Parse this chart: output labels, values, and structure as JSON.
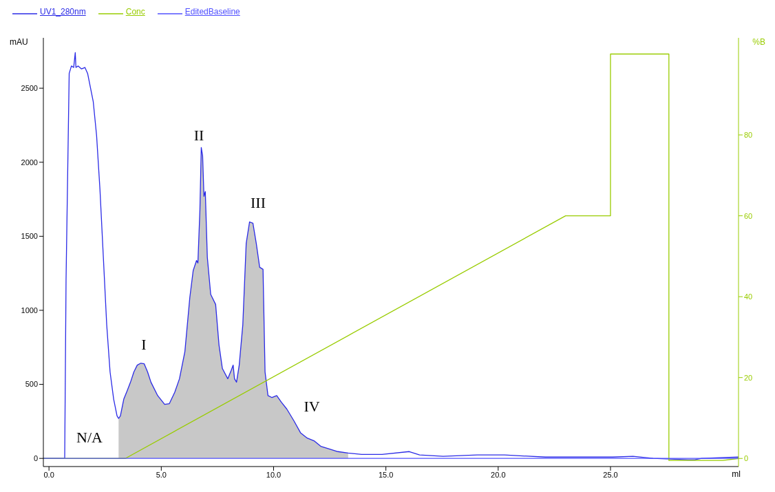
{
  "chart_data": {
    "type": "line",
    "xlabel": "ml",
    "ylabel": "mAU",
    "y2label": "%B",
    "legend": "top left",
    "grid": false,
    "marker": "none",
    "xlim": [
      -0.25,
      30.7
    ],
    "xticks": [
      {
        "value": 0,
        "label": "0.0"
      },
      {
        "value": 5,
        "label": "5.0"
      },
      {
        "value": 10,
        "label": "10.0"
      },
      {
        "value": 15,
        "label": "15.0"
      },
      {
        "value": 20,
        "label": "20.0"
      },
      {
        "value": 25,
        "label": "25.0"
      }
    ],
    "ylim": [
      -55,
      2840
    ],
    "yticks": [
      0,
      500,
      1000,
      1500,
      2000,
      2500
    ],
    "y2lim": [
      -2,
      104
    ],
    "y2ticks": [
      0,
      20,
      40,
      60,
      80
    ],
    "series": [
      {
        "type": "area",
        "color": "#c8c8c8",
        "x": [
          3.1,
          3.18,
          3.33,
          3.48,
          3.63,
          3.78,
          3.93,
          4.09,
          4.24,
          4.39,
          4.54,
          4.84,
          5.15,
          5.36,
          5.6,
          5.81,
          6.05,
          6.27,
          6.42,
          6.57,
          6.63,
          6.72,
          6.78,
          6.84,
          6.9,
          6.96,
          7.05,
          7.2,
          7.42,
          7.57,
          7.72,
          7.96,
          8.11,
          8.2,
          8.26,
          8.35,
          8.47,
          8.63,
          8.78,
          8.93,
          9.08,
          9.23,
          9.38,
          9.53,
          9.62,
          9.75,
          9.93,
          10.14,
          10.35,
          10.59,
          10.9,
          11.2,
          11.5,
          11.8,
          12.1,
          12.4,
          12.86,
          13.32
        ],
        "values": [
          270,
          287,
          400,
          456,
          515,
          584,
          630,
          643,
          639,
          584,
          515,
          424,
          365,
          370,
          447,
          538,
          720,
          1086,
          1268,
          1337,
          1320,
          1679,
          2099,
          2044,
          1770,
          1802,
          1359,
          1108,
          1040,
          766,
          607,
          538,
          593,
          630,
          538,
          515,
          630,
          903,
          1451,
          1597,
          1588,
          1451,
          1291,
          1277,
          584,
          424,
          411,
          424,
          379,
          333,
          255,
          173,
          137,
          119,
          82,
          68,
          46,
          36
        ]
      },
      {
        "name": "UV1_280nm",
        "color": "#2a2ae6",
        "x": [
          -0.25,
          0.7,
          0.76,
          0.9,
          1.0,
          1.1,
          1.17,
          1.2,
          1.3,
          1.45,
          1.6,
          1.72,
          1.97,
          2.12,
          2.27,
          2.42,
          2.57,
          2.72,
          2.88,
          3.03,
          3.1,
          3.18,
          3.33,
          3.48,
          3.63,
          3.78,
          3.93,
          4.09,
          4.24,
          4.39,
          4.54,
          4.84,
          5.15,
          5.36,
          5.6,
          5.81,
          6.05,
          6.27,
          6.42,
          6.57,
          6.63,
          6.72,
          6.78,
          6.84,
          6.9,
          6.96,
          7.05,
          7.2,
          7.42,
          7.57,
          7.72,
          7.96,
          8.11,
          8.2,
          8.26,
          8.35,
          8.47,
          8.63,
          8.78,
          8.93,
          9.08,
          9.23,
          9.38,
          9.53,
          9.62,
          9.75,
          9.93,
          10.14,
          10.35,
          10.59,
          10.9,
          11.2,
          11.5,
          11.8,
          12.1,
          12.4,
          12.86,
          13.32,
          13.92,
          14.83,
          16.04,
          16.5,
          17.55,
          19.07,
          20.28,
          22.1,
          25.1,
          26.0,
          26.9,
          28.45,
          28.75,
          29.05,
          30.7
        ],
        "values": [
          0,
          0,
          1200,
          2600,
          2650,
          2640,
          2740,
          2640,
          2650,
          2630,
          2640,
          2600,
          2410,
          2180,
          1815,
          1360,
          903,
          584,
          400,
          287,
          270,
          287,
          400,
          456,
          515,
          584,
          630,
          643,
          639,
          584,
          515,
          424,
          365,
          370,
          447,
          538,
          720,
          1086,
          1268,
          1337,
          1320,
          1679,
          2099,
          2044,
          1770,
          1802,
          1359,
          1108,
          1040,
          766,
          607,
          538,
          593,
          630,
          538,
          515,
          630,
          903,
          1451,
          1597,
          1588,
          1451,
          1291,
          1277,
          584,
          424,
          411,
          424,
          379,
          333,
          255,
          173,
          137,
          119,
          82,
          68,
          46,
          36,
          27,
          27,
          46,
          23,
          14,
          23,
          23,
          9,
          9,
          14,
          0,
          -9,
          -9,
          0,
          9
        ]
      },
      {
        "name": "Conc",
        "color": "#99cc00",
        "axis": "y2",
        "x": [
          -0.25,
          3.4,
          23,
          25,
          25,
          27.6,
          27.6,
          30,
          30.7
        ],
        "values": [
          0,
          0,
          60,
          60,
          100,
          100,
          -0.5,
          -0.5,
          0
        ]
      },
      {
        "name": "EditedBaseline",
        "color": "#5050ff",
        "x": [
          -0.25,
          30.7
        ],
        "values": [
          0,
          0
        ]
      }
    ],
    "annotations": [
      "N/A",
      "I",
      "II",
      "III",
      "IV"
    ]
  }
}
